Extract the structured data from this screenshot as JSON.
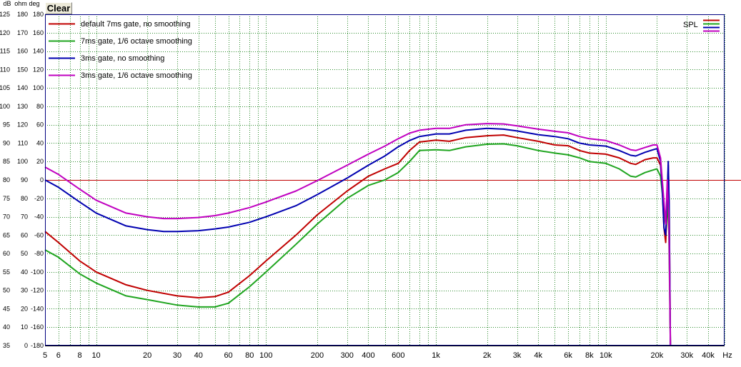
{
  "toolbar": {
    "clear_label": "Clear"
  },
  "colors": {
    "background": "#ffffff",
    "grid": "#2e8b2e",
    "frame": "#000080",
    "reference_line": "#c00000",
    "series_red": "#c00000",
    "series_green": "#1fa51f",
    "series_blue": "#0000b0",
    "series_magenta": "#c000c0"
  },
  "chart_data": {
    "type": "line",
    "x_scale": "log",
    "xlim": [
      5,
      50000
    ],
    "ylim": [
      35,
      125
    ],
    "grid": true,
    "legend_position": "top-left",
    "axis_units": [
      "dB",
      "ohm",
      "deg"
    ],
    "x_unit": "Hz",
    "x_tick_labels": [
      {
        "v": 5,
        "label": "5"
      },
      {
        "v": 6,
        "label": "6"
      },
      {
        "v": 8,
        "label": "8"
      },
      {
        "v": 10,
        "label": "10"
      },
      {
        "v": 20,
        "label": "20"
      },
      {
        "v": 30,
        "label": "30"
      },
      {
        "v": 40,
        "label": "40"
      },
      {
        "v": 60,
        "label": "60"
      },
      {
        "v": 80,
        "label": "80"
      },
      {
        "v": 100,
        "label": "100"
      },
      {
        "v": 200,
        "label": "200"
      },
      {
        "v": 300,
        "label": "300"
      },
      {
        "v": 400,
        "label": "400"
      },
      {
        "v": 600,
        "label": "600"
      },
      {
        "v": 1000,
        "label": "1k"
      },
      {
        "v": 2000,
        "label": "2k"
      },
      {
        "v": 3000,
        "label": "3k"
      },
      {
        "v": 4000,
        "label": "4k"
      },
      {
        "v": 6000,
        "label": "6k"
      },
      {
        "v": 8000,
        "label": "8k"
      },
      {
        "v": 10000,
        "label": "10k"
      },
      {
        "v": 20000,
        "label": "20k"
      },
      {
        "v": 30000,
        "label": "30k"
      },
      {
        "v": 40000,
        "label": "40k"
      }
    ],
    "x_minor_ticks": [
      7,
      9,
      50,
      70,
      90,
      500,
      700,
      800,
      900,
      5000,
      7000,
      9000,
      50000
    ],
    "y_ticks": [
      {
        "db": "125",
        "ohm": "180",
        "deg": "180"
      },
      {
        "db": "120",
        "ohm": "170",
        "deg": "160"
      },
      {
        "db": "115",
        "ohm": "160",
        "deg": "140"
      },
      {
        "db": "110",
        "ohm": "150",
        "deg": "120"
      },
      {
        "db": "105",
        "ohm": "140",
        "deg": "100"
      },
      {
        "db": "100",
        "ohm": "130",
        "deg": "80"
      },
      {
        "db": "95",
        "ohm": "120",
        "deg": "60"
      },
      {
        "db": "90",
        "ohm": "110",
        "deg": "40"
      },
      {
        "db": "85",
        "ohm": "100",
        "deg": "20"
      },
      {
        "db": "80",
        "ohm": "90",
        "deg": "0"
      },
      {
        "db": "75",
        "ohm": "80",
        "deg": "-20"
      },
      {
        "db": "70",
        "ohm": "70",
        "deg": "-40"
      },
      {
        "db": "65",
        "ohm": "60",
        "deg": "-60"
      },
      {
        "db": "60",
        "ohm": "50",
        "deg": "-80"
      },
      {
        "db": "55",
        "ohm": "40",
        "deg": "-100"
      },
      {
        "db": "50",
        "ohm": "30",
        "deg": "-120"
      },
      {
        "db": "45",
        "ohm": "20",
        "deg": "-140"
      },
      {
        "db": "40",
        "ohm": "10",
        "deg": "-160"
      },
      {
        "db": "35",
        "ohm": "0",
        "deg": "-180"
      }
    ],
    "reference_line_db": 80,
    "spl_label": "SPL",
    "series": [
      {
        "name": "default 7ms gate, no smoothing",
        "color": "#c00000",
        "points": [
          [
            5,
            66
          ],
          [
            6,
            63
          ],
          [
            8,
            58
          ],
          [
            10,
            55
          ],
          [
            15,
            51.5
          ],
          [
            20,
            50
          ],
          [
            30,
            48.5
          ],
          [
            40,
            48
          ],
          [
            50,
            48.3
          ],
          [
            60,
            49.5
          ],
          [
            80,
            54
          ],
          [
            100,
            58
          ],
          [
            150,
            65
          ],
          [
            200,
            70.5
          ],
          [
            300,
            77
          ],
          [
            400,
            81
          ],
          [
            500,
            83
          ],
          [
            600,
            84.5
          ],
          [
            700,
            88
          ],
          [
            800,
            90.3
          ],
          [
            1000,
            90.8
          ],
          [
            1200,
            90.5
          ],
          [
            1500,
            91.5
          ],
          [
            2000,
            92
          ],
          [
            2500,
            92.2
          ],
          [
            3000,
            91.5
          ],
          [
            4000,
            90.5
          ],
          [
            5000,
            89.5
          ],
          [
            6000,
            89.3
          ],
          [
            7000,
            88
          ],
          [
            8000,
            87.3
          ],
          [
            10000,
            87
          ],
          [
            12000,
            86
          ],
          [
            14000,
            84.5
          ],
          [
            15000,
            84.2
          ],
          [
            17000,
            85.5
          ],
          [
            19000,
            86
          ],
          [
            20000,
            86
          ],
          [
            21000,
            84
          ],
          [
            21500,
            78
          ],
          [
            22000,
            67
          ],
          [
            22500,
            63
          ],
          [
            23000,
            74
          ],
          [
            23300,
            84
          ],
          [
            23600,
            72
          ],
          [
            24000,
            35
          ]
        ]
      },
      {
        "name": "7ms gate, 1/6 octave smoothing",
        "color": "#1fa51f",
        "points": [
          [
            5,
            61
          ],
          [
            6,
            59
          ],
          [
            8,
            54.5
          ],
          [
            10,
            52
          ],
          [
            15,
            48.5
          ],
          [
            20,
            47.5
          ],
          [
            30,
            46
          ],
          [
            40,
            45.5
          ],
          [
            50,
            45.5
          ],
          [
            60,
            46.5
          ],
          [
            80,
            51
          ],
          [
            100,
            55
          ],
          [
            150,
            62.5
          ],
          [
            200,
            68
          ],
          [
            300,
            75
          ],
          [
            400,
            78.5
          ],
          [
            500,
            80
          ],
          [
            600,
            82
          ],
          [
            700,
            85
          ],
          [
            800,
            88
          ],
          [
            1000,
            88.2
          ],
          [
            1200,
            88
          ],
          [
            1500,
            89
          ],
          [
            2000,
            89.7
          ],
          [
            2500,
            89.8
          ],
          [
            3000,
            89.3
          ],
          [
            4000,
            88
          ],
          [
            5000,
            87.3
          ],
          [
            6000,
            86.8
          ],
          [
            7000,
            86
          ],
          [
            8000,
            85
          ],
          [
            10000,
            84.5
          ],
          [
            12000,
            83
          ],
          [
            14000,
            81
          ],
          [
            15000,
            80.8
          ],
          [
            17000,
            82
          ],
          [
            19000,
            82.7
          ],
          [
            20000,
            83
          ],
          [
            21000,
            81
          ],
          [
            22000,
            72
          ],
          [
            22500,
            68
          ],
          [
            23000,
            75
          ],
          [
            23500,
            66
          ],
          [
            24000,
            35
          ]
        ]
      },
      {
        "name": "3ms gate, no smoothing",
        "color": "#0000b0",
        "points": [
          [
            5,
            80
          ],
          [
            6,
            78
          ],
          [
            8,
            74
          ],
          [
            10,
            71
          ],
          [
            15,
            67.5
          ],
          [
            20,
            66.5
          ],
          [
            25,
            66
          ],
          [
            30,
            66
          ],
          [
            40,
            66.2
          ],
          [
            50,
            66.7
          ],
          [
            60,
            67.2
          ],
          [
            80,
            68.5
          ],
          [
            100,
            70
          ],
          [
            150,
            73
          ],
          [
            200,
            76
          ],
          [
            300,
            80.5
          ],
          [
            400,
            84
          ],
          [
            500,
            86.5
          ],
          [
            600,
            89
          ],
          [
            700,
            90.7
          ],
          [
            800,
            91.8
          ],
          [
            1000,
            92.5
          ],
          [
            1200,
            92.5
          ],
          [
            1500,
            93.5
          ],
          [
            2000,
            94
          ],
          [
            2500,
            93.8
          ],
          [
            3000,
            93.3
          ],
          [
            4000,
            92.3
          ],
          [
            5000,
            91.8
          ],
          [
            6000,
            91.2
          ],
          [
            7000,
            90
          ],
          [
            8000,
            89.5
          ],
          [
            10000,
            89.2
          ],
          [
            12000,
            88
          ],
          [
            14000,
            86.7
          ],
          [
            15000,
            86.5
          ],
          [
            17000,
            87.5
          ],
          [
            19000,
            88.2
          ],
          [
            20000,
            88.5
          ],
          [
            21000,
            85
          ],
          [
            21500,
            77
          ],
          [
            22000,
            67
          ],
          [
            22500,
            65
          ],
          [
            23000,
            76
          ],
          [
            23300,
            85
          ],
          [
            23600,
            73
          ],
          [
            24000,
            35
          ]
        ]
      },
      {
        "name": "3ms gate, 1/6 octave smoothing",
        "color": "#c000c0",
        "points": [
          [
            5,
            83.5
          ],
          [
            6,
            81.5
          ],
          [
            8,
            77.5
          ],
          [
            10,
            74.5
          ],
          [
            15,
            71
          ],
          [
            20,
            70
          ],
          [
            25,
            69.5
          ],
          [
            30,
            69.5
          ],
          [
            40,
            69.8
          ],
          [
            50,
            70.3
          ],
          [
            60,
            71
          ],
          [
            80,
            72.5
          ],
          [
            100,
            74
          ],
          [
            150,
            77
          ],
          [
            200,
            79.8
          ],
          [
            300,
            84
          ],
          [
            400,
            87
          ],
          [
            500,
            89.2
          ],
          [
            600,
            91.2
          ],
          [
            700,
            92.7
          ],
          [
            800,
            93.5
          ],
          [
            1000,
            94
          ],
          [
            1200,
            94
          ],
          [
            1500,
            95
          ],
          [
            2000,
            95.3
          ],
          [
            2500,
            95.2
          ],
          [
            3000,
            94.7
          ],
          [
            4000,
            93.8
          ],
          [
            5000,
            93.2
          ],
          [
            6000,
            92.8
          ],
          [
            7000,
            91.8
          ],
          [
            8000,
            91.2
          ],
          [
            10000,
            90.7
          ],
          [
            12000,
            89.5
          ],
          [
            14000,
            88.2
          ],
          [
            15000,
            88
          ],
          [
            17000,
            88.8
          ],
          [
            19000,
            89.5
          ],
          [
            20000,
            89.5
          ],
          [
            21000,
            86
          ],
          [
            22000,
            74
          ],
          [
            22500,
            68
          ],
          [
            23000,
            80
          ],
          [
            23500,
            70
          ],
          [
            24000,
            35
          ]
        ]
      }
    ]
  }
}
